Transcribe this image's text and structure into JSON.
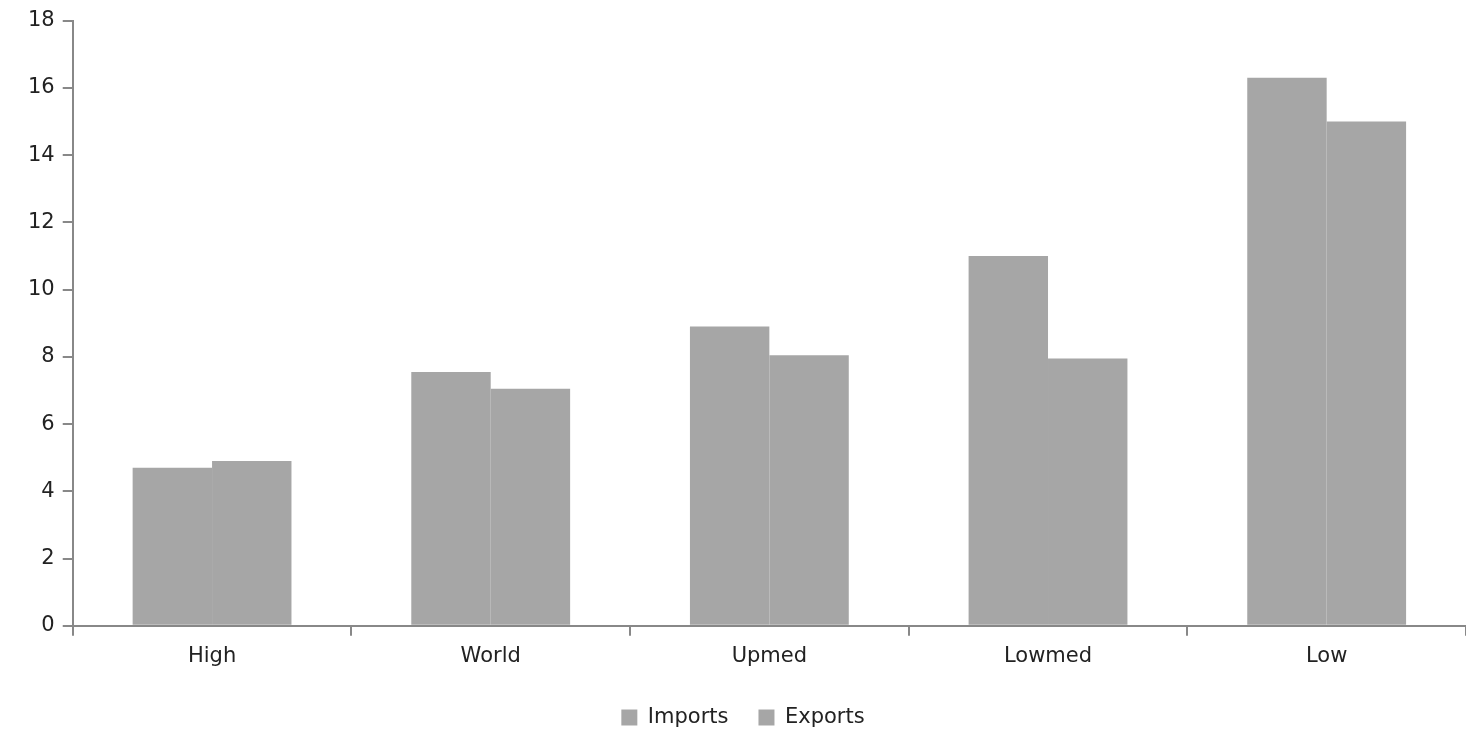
{
  "chart_data": {
    "type": "bar",
    "categories": [
      "High",
      "World",
      "Upmed",
      "Lowmed",
      "Low"
    ],
    "series": [
      {
        "name": "Imports",
        "color": "#a6a6a6",
        "values": [
          4.7,
          7.55,
          8.9,
          11.0,
          16.3
        ]
      },
      {
        "name": "Exports",
        "color": "#a6a6a6",
        "values": [
          4.9,
          7.05,
          8.05,
          7.95,
          15.0
        ]
      }
    ],
    "ylim": [
      0,
      18
    ],
    "yticks": [
      0,
      2,
      4,
      6,
      8,
      10,
      12,
      14,
      16,
      18
    ],
    "grid": false,
    "legend": "bottom"
  }
}
